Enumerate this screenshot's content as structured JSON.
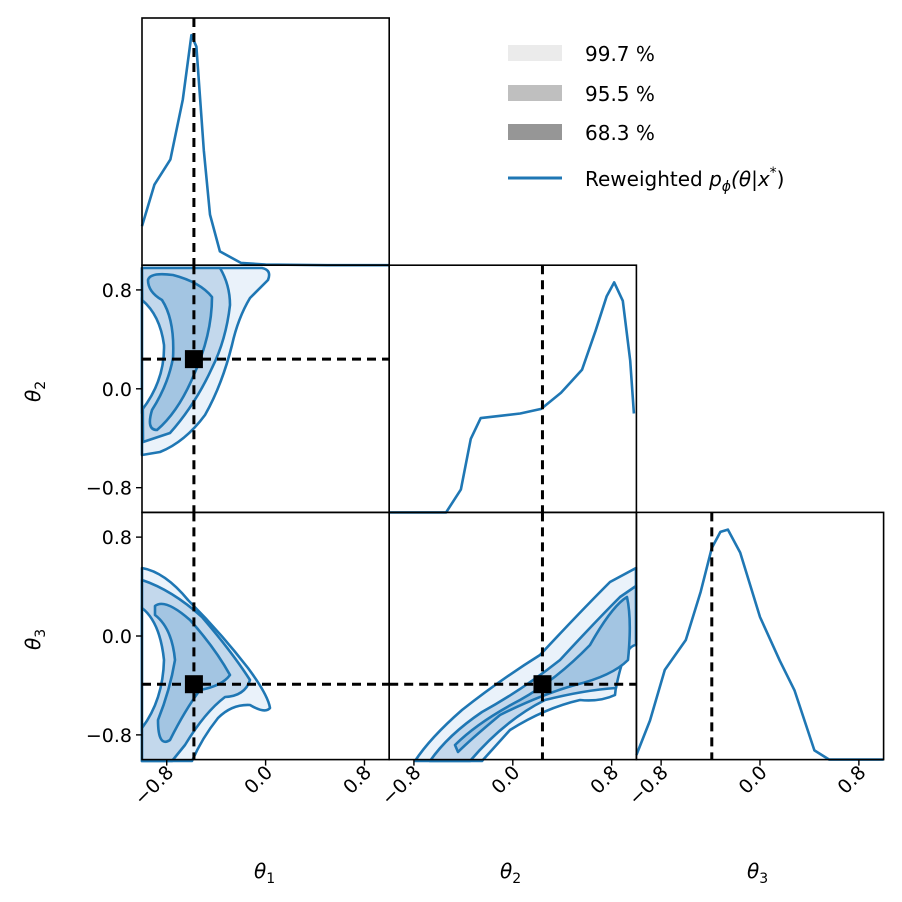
{
  "chart_data": {
    "type": "corner",
    "parameters": [
      "θ1",
      "θ2",
      "θ3"
    ],
    "axis_labels": {
      "theta1": {
        "base": "θ",
        "sub": "1"
      },
      "theta2": {
        "base": "θ",
        "sub": "2"
      },
      "theta3": {
        "base": "θ",
        "sub": "3"
      }
    },
    "range": [
      -1,
      1
    ],
    "ticks": [
      -0.8,
      0.0,
      0.8
    ],
    "tick_labels": [
      "−0.8",
      "0.0",
      "0.8"
    ],
    "true_values": [
      -0.58,
      0.24,
      -0.39
    ],
    "legend": {
      "placement": "top-right",
      "entries": [
        {
          "label": "99.7 %",
          "color": "#ebebeb"
        },
        {
          "label": "95.5 %",
          "color": "#bfbfbf"
        },
        {
          "label": "68.3 %",
          "color": "#969696"
        }
      ],
      "line_entry": {
        "parts": [
          "Reweighted ",
          "p",
          "ϕ",
          "(θ|",
          "x",
          "*",
          ")"
        ],
        "color": "#1f77b4"
      }
    },
    "contour_levels": [
      0.997,
      0.955,
      0.683
    ],
    "series_color": "#1f77b4",
    "marginals": [
      {
        "param": "θ1",
        "x": [
          -1,
          -0.9,
          -0.77,
          -0.67,
          -0.6,
          -0.56,
          -0.5,
          -0.45,
          -0.37,
          -0.2,
          0,
          0.5,
          1
        ],
        "density": [
          0.17,
          0.35,
          0.46,
          0.72,
          1.0,
          0.95,
          0.5,
          0.22,
          0.06,
          0.01,
          0.003,
          0,
          0
        ]
      },
      {
        "param": "θ2",
        "x": [
          -1,
          -0.54,
          -0.42,
          -0.34,
          -0.26,
          -0.1,
          0.06,
          0.23,
          0.39,
          0.56,
          0.67,
          0.76,
          0.82,
          0.89,
          0.95,
          0.98
        ],
        "density": [
          0,
          0,
          0.1,
          0.32,
          0.41,
          0.42,
          0.43,
          0.45,
          0.52,
          0.62,
          0.79,
          0.94,
          1.0,
          0.92,
          0.66,
          0.43
        ]
      },
      {
        "param": "θ3",
        "x": [
          -1,
          -0.89,
          -0.77,
          -0.6,
          -0.48,
          -0.39,
          -0.32,
          -0.26,
          -0.16,
          0,
          0.16,
          0.28,
          0.36,
          0.44,
          0.56,
          1
        ],
        "density": [
          0.02,
          0.17,
          0.39,
          0.52,
          0.73,
          0.92,
          0.99,
          1.0,
          0.9,
          0.62,
          0.43,
          0.3,
          0.17,
          0.04,
          0,
          0
        ]
      }
    ]
  }
}
